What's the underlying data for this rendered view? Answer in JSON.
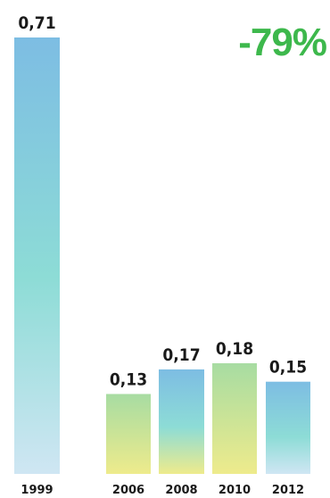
{
  "chart_data": {
    "type": "bar",
    "categories": [
      "1999",
      "2006",
      "2008",
      "2010",
      "2012"
    ],
    "values": [
      0.71,
      0.13,
      0.17,
      0.18,
      0.15
    ],
    "value_labels": [
      "0,71",
      "0,13",
      "0,17",
      "0,18",
      "0,15"
    ],
    "annotation": "-79%",
    "ylim": [
      0,
      0.71
    ],
    "grid": false,
    "legend": "none"
  },
  "colors": {
    "annotation": "#3db84c",
    "bar_blue": "#7dbde3",
    "bar_teal": "#8ddcd6",
    "bar_light": "#cfe6f3",
    "bar_green": "#a7dca2",
    "bar_yellow": "#eeeb8c"
  }
}
